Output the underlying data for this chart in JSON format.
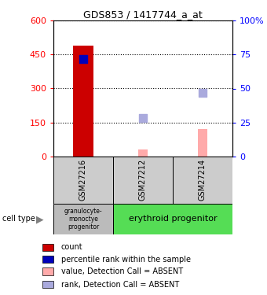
{
  "title": "GDS853 / 1417744_a_at",
  "samples": [
    "GSM27216",
    "GSM27212",
    "GSM27214"
  ],
  "bar_positions": [
    0,
    1,
    2
  ],
  "red_bar_values": [
    490,
    0,
    0
  ],
  "pink_bar_values": [
    0,
    30,
    120
  ],
  "blue_square_pct": [
    72,
    0,
    0
  ],
  "lavender_square_pct": [
    0,
    28,
    47
  ],
  "ylim_left": [
    0,
    600
  ],
  "ylim_right": [
    0,
    100
  ],
  "yticks_left": [
    0,
    150,
    300,
    450,
    600
  ],
  "yticks_right": [
    0,
    25,
    50,
    75,
    100
  ],
  "ytick_labels_left": [
    "0",
    "150",
    "300",
    "450",
    "600"
  ],
  "ytick_labels_right": [
    "0",
    "25",
    "50",
    "75",
    "100%"
  ],
  "cell_type_labels": [
    "granulocyte-\nmonoctye\nprogenitor",
    "erythroid progenitor"
  ],
  "cell_type_colors": [
    "#bbbbbb",
    "#55dd55"
  ],
  "sample_bg_color": "#cccccc",
  "bar_color_red": "#cc0000",
  "bar_color_pink": "#ffaaaa",
  "square_color_blue": "#0000bb",
  "square_color_lavender": "#aaaadd",
  "bar_width": 0.35,
  "pink_bar_width": 0.15,
  "dot_size": 50,
  "legend_items": [
    "count",
    "percentile rank within the sample",
    "value, Detection Call = ABSENT",
    "rank, Detection Call = ABSENT"
  ],
  "legend_colors": [
    "#cc0000",
    "#0000bb",
    "#ffaaaa",
    "#aaaadd"
  ]
}
